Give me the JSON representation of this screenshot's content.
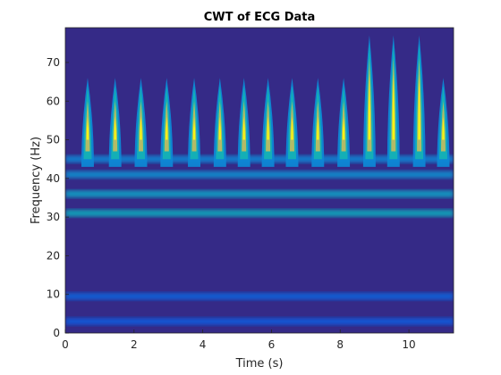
{
  "chart_data": {
    "type": "heatmap",
    "title": "CWT of ECG Data",
    "xlabel": "Time (s)",
    "ylabel": "Frequency (Hz)",
    "xlim": [
      0,
      11.3
    ],
    "ylim": [
      0,
      79
    ],
    "xticks": [
      "0",
      "2",
      "4",
      "6",
      "8",
      "10"
    ],
    "yticks": [
      "0",
      "10",
      "20",
      "30",
      "40",
      "50",
      "60",
      "70"
    ],
    "colormap": "parula",
    "colors": {
      "low": "#352a87",
      "mid": "#0fa5c9",
      "high": "#f9fb0e"
    },
    "grid": false,
    "legend": "none",
    "beats_s": [
      0.65,
      1.45,
      2.2,
      2.95,
      3.75,
      4.5,
      5.2,
      5.9,
      6.6,
      7.35,
      8.1,
      8.85,
      9.55,
      10.3,
      11.0
    ],
    "bands": [
      {
        "freq_hz": 31,
        "intensity": 0.55
      },
      {
        "freq_hz": 36,
        "intensity": 0.5
      },
      {
        "freq_hz": 41,
        "intensity": 0.4
      },
      {
        "freq_hz": 45,
        "intensity": 0.35
      },
      {
        "freq_hz": 9.5,
        "intensity": 0.18
      },
      {
        "freq_hz": 3,
        "intensity": 0.15
      }
    ]
  }
}
